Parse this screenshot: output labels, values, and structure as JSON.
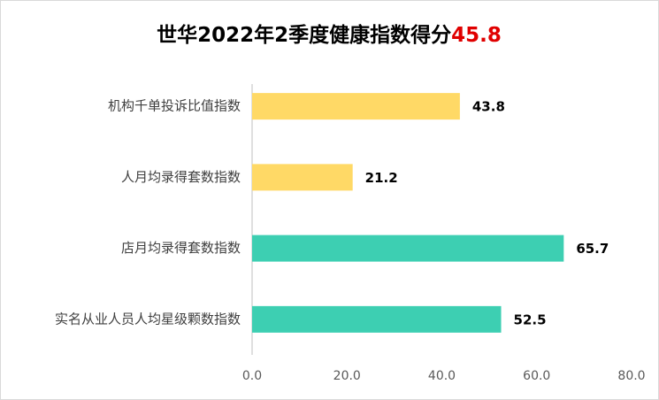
{
  "chart_data": {
    "type": "bar",
    "orientation": "horizontal",
    "title": "世华2022年2季度健康指数得分",
    "title_highlight": "45.8",
    "title_highlight_color": "#e00000",
    "categories": [
      "机构千单投诉比值指数",
      "人月均录得套数指数",
      "店月均录得套数指数",
      "实名从业人员人均星级颗数指数"
    ],
    "values": [
      43.8,
      21.2,
      65.7,
      52.5
    ],
    "colors": [
      "#ffd966",
      "#ffd966",
      "#3dcfb2",
      "#3dcfb2"
    ],
    "xlim": [
      0,
      80
    ],
    "xticks": [
      {
        "value": 0,
        "label": "0.0"
      },
      {
        "value": 20,
        "label": "20.0"
      },
      {
        "value": 40,
        "label": "40.0"
      },
      {
        "value": 60,
        "label": "60.0"
      },
      {
        "value": 80,
        "label": "80.0"
      }
    ],
    "grid": false
  }
}
